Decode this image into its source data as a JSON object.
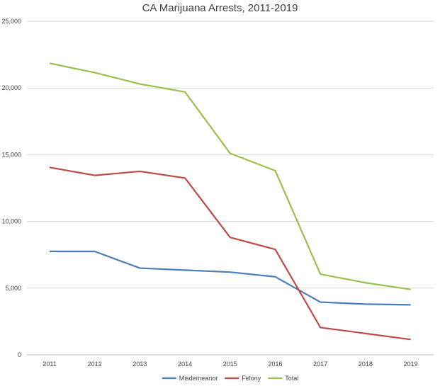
{
  "chart_data": {
    "type": "line",
    "title": "CA Marijuana Arrests, 2011-2019",
    "xlabel": "",
    "ylabel": "",
    "categories": [
      "2011",
      "2012",
      "2013",
      "2014",
      "2015",
      "2016",
      "2017",
      "2018",
      "2019"
    ],
    "ylim": [
      0,
      25000
    ],
    "yticks": [
      0,
      5000,
      10000,
      15000,
      20000,
      25000
    ],
    "ytick_labels": [
      "0",
      "5,000",
      "10,000",
      "15,000",
      "20,000",
      "25,000"
    ],
    "grid": true,
    "legend_position": "bottom",
    "series": [
      {
        "name": "Misdemeanor",
        "color": "#4a7ebb",
        "values": [
          7750,
          7750,
          6500,
          6350,
          6200,
          5850,
          3950,
          3800,
          3750
        ]
      },
      {
        "name": "Felony",
        "color": "#be4b48",
        "values": [
          14050,
          13450,
          13750,
          13250,
          8800,
          7900,
          2050,
          1600,
          1150
        ]
      },
      {
        "name": "Total",
        "color": "#98c04c",
        "values": [
          21850,
          21150,
          20300,
          19700,
          15100,
          13800,
          6050,
          5400,
          4900
        ]
      }
    ]
  }
}
